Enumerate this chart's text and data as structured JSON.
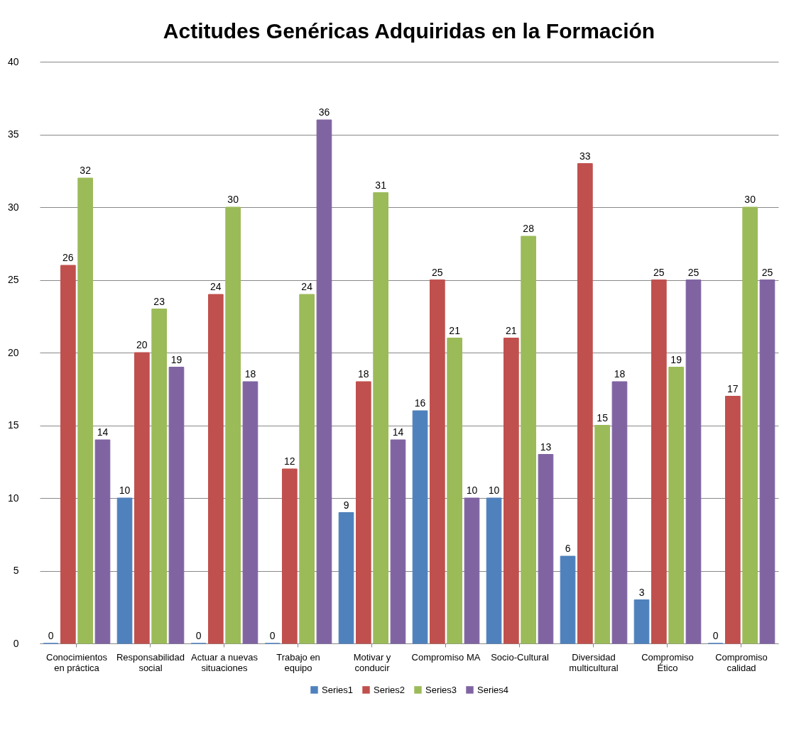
{
  "chart_data": {
    "type": "bar",
    "title": "Actitudes Genéricas Adquiridas en la Formación",
    "categories": [
      "Conocimientos en práctica",
      "Responsabilidad social",
      "Actuar a nuevas situaciones",
      "Trabajo en equipo",
      "Motivar y conducir",
      "Compromiso MA",
      "Socio-Cultural",
      "Diversidad multicultural",
      "Compromiso Ético",
      "Compromiso calidad"
    ],
    "series": [
      {
        "name": "Series1",
        "color": "#4f81bd",
        "values": [
          0,
          10,
          0,
          0,
          9,
          16,
          10,
          6,
          3,
          0
        ]
      },
      {
        "name": "Series2",
        "color": "#c0504d",
        "values": [
          26,
          20,
          24,
          12,
          18,
          25,
          21,
          33,
          25,
          17
        ]
      },
      {
        "name": "Series3",
        "color": "#9bbb59",
        "values": [
          32,
          23,
          30,
          24,
          31,
          21,
          28,
          15,
          19,
          30
        ]
      },
      {
        "name": "Series4",
        "color": "#8064a2",
        "values": [
          14,
          19,
          18,
          36,
          14,
          10,
          13,
          18,
          25,
          25
        ]
      }
    ],
    "ylim": [
      0,
      40
    ],
    "yticks": [
      0,
      5,
      10,
      15,
      20,
      25,
      30,
      35,
      40
    ],
    "grid": "y",
    "legend": "bottom",
    "data_labels": true
  }
}
